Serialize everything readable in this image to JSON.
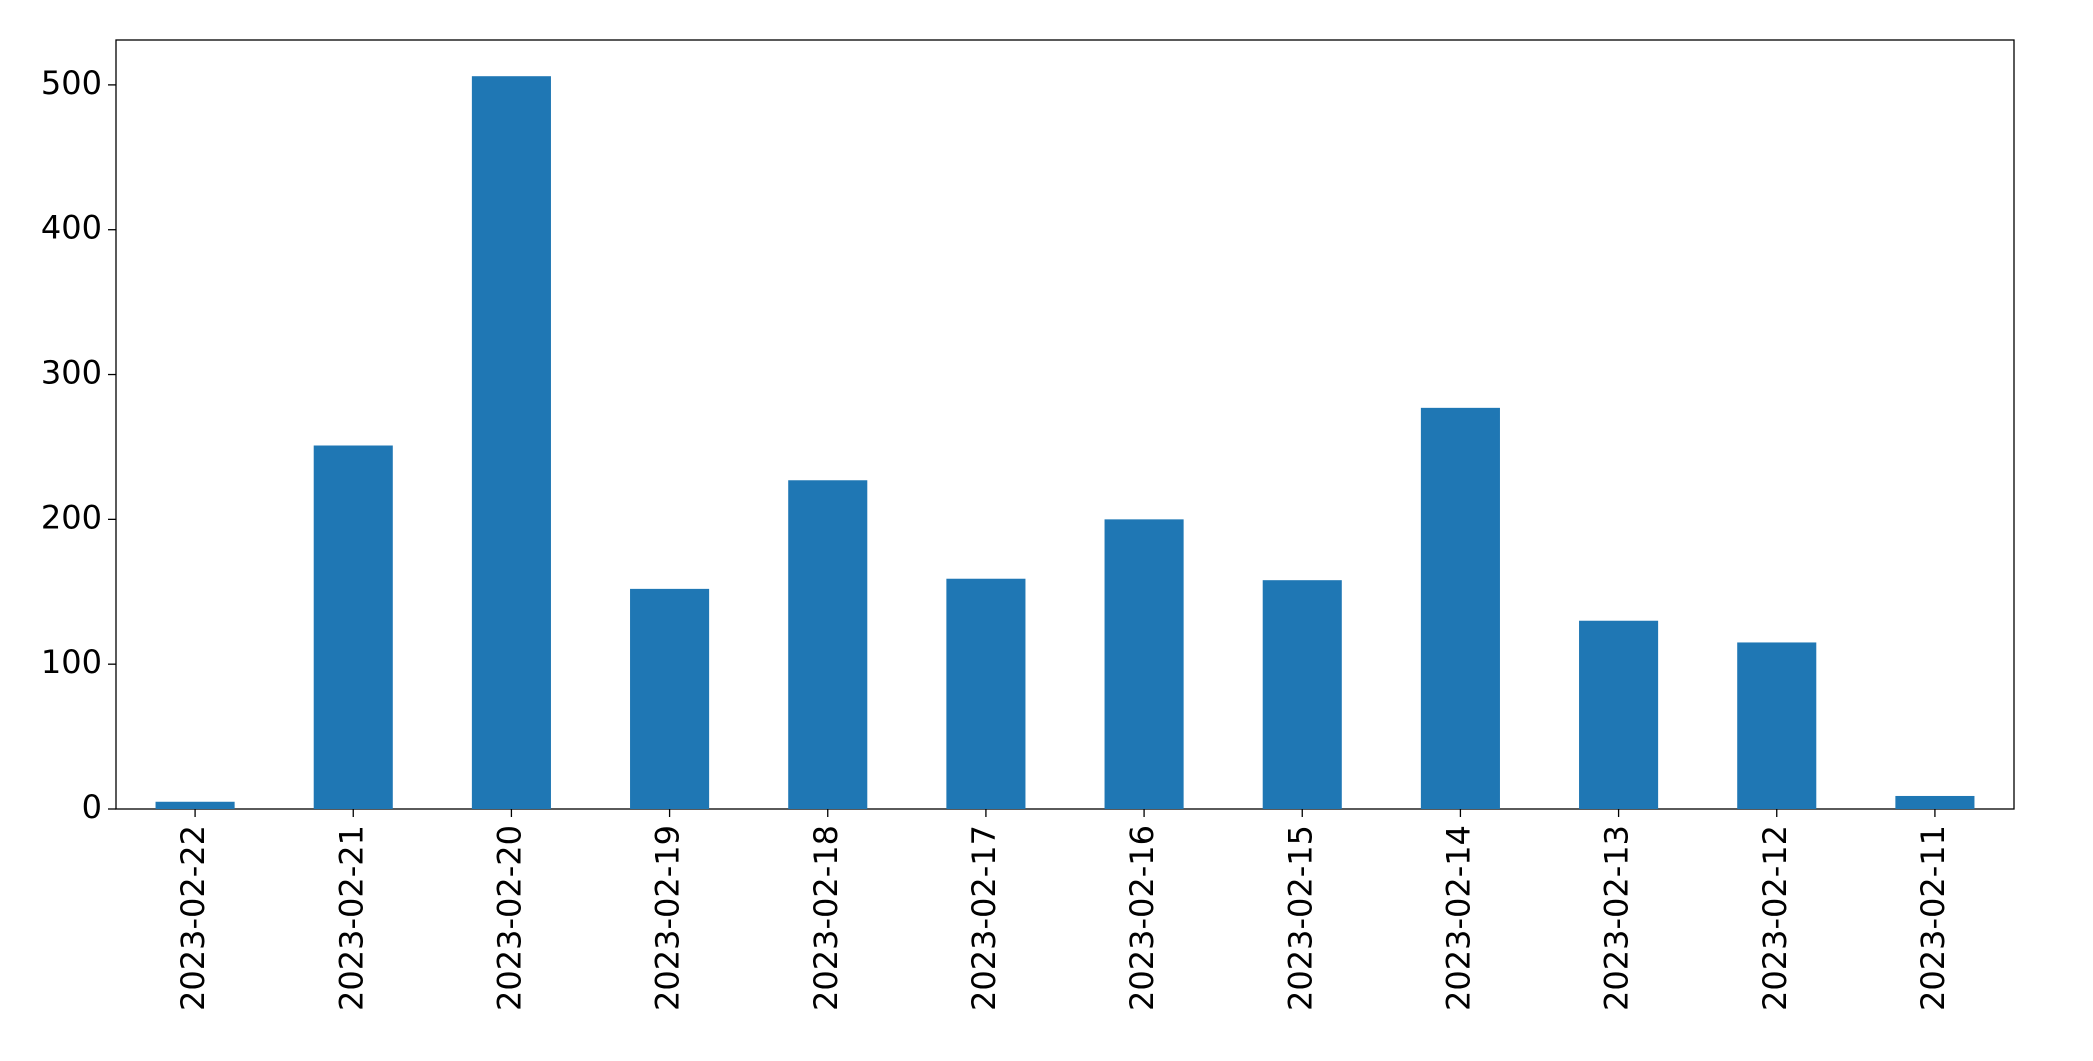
{
  "chart_data": {
    "type": "bar",
    "categories": [
      "2023-02-22",
      "2023-02-21",
      "2023-02-20",
      "2023-02-19",
      "2023-02-18",
      "2023-02-17",
      "2023-02-16",
      "2023-02-15",
      "2023-02-14",
      "2023-02-13",
      "2023-02-12",
      "2023-02-11"
    ],
    "values": [
      5,
      251,
      506,
      152,
      227,
      159,
      200,
      158,
      277,
      130,
      115,
      9
    ],
    "color": "#1f77b4",
    "ylim": [
      0,
      531
    ],
    "yticks": [
      0,
      100,
      200,
      300,
      400,
      500
    ],
    "grid": false
  }
}
